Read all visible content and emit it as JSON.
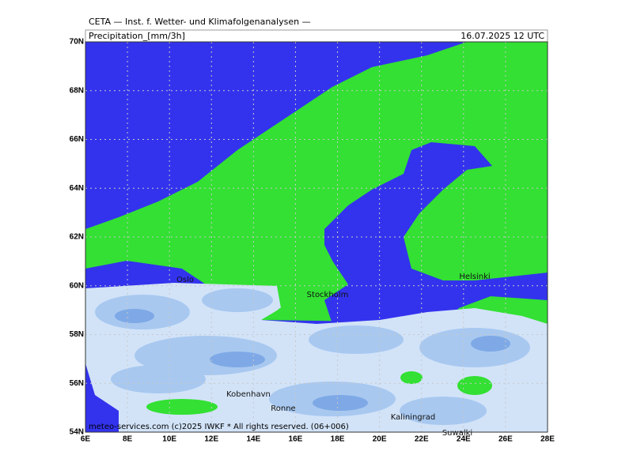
{
  "header": {
    "institute": "CETA — Inst. f. Wetter- und Klimafolgenanalysen —",
    "title": "Precipitation_[mm/3h]",
    "date": "16.07.2025  12 UTC"
  },
  "axes": {
    "lat": [
      "70N",
      "68N",
      "66N",
      "64N",
      "62N",
      "60N",
      "58N",
      "56N",
      "54N"
    ],
    "lon": [
      "6E",
      "8E",
      "10E",
      "12E",
      "14E",
      "16E",
      "18E",
      "20E",
      "22E",
      "24E",
      "26E",
      "28E"
    ]
  },
  "cities": [
    "Oslo",
    "Stockholm",
    "Helsinki",
    "Kobenhavn",
    "Ronne",
    "Kaliningrad",
    "Suwalki"
  ],
  "footer": "meteo-services.com (c)2025 IWKF * All rights reserved. (06+006)"
}
